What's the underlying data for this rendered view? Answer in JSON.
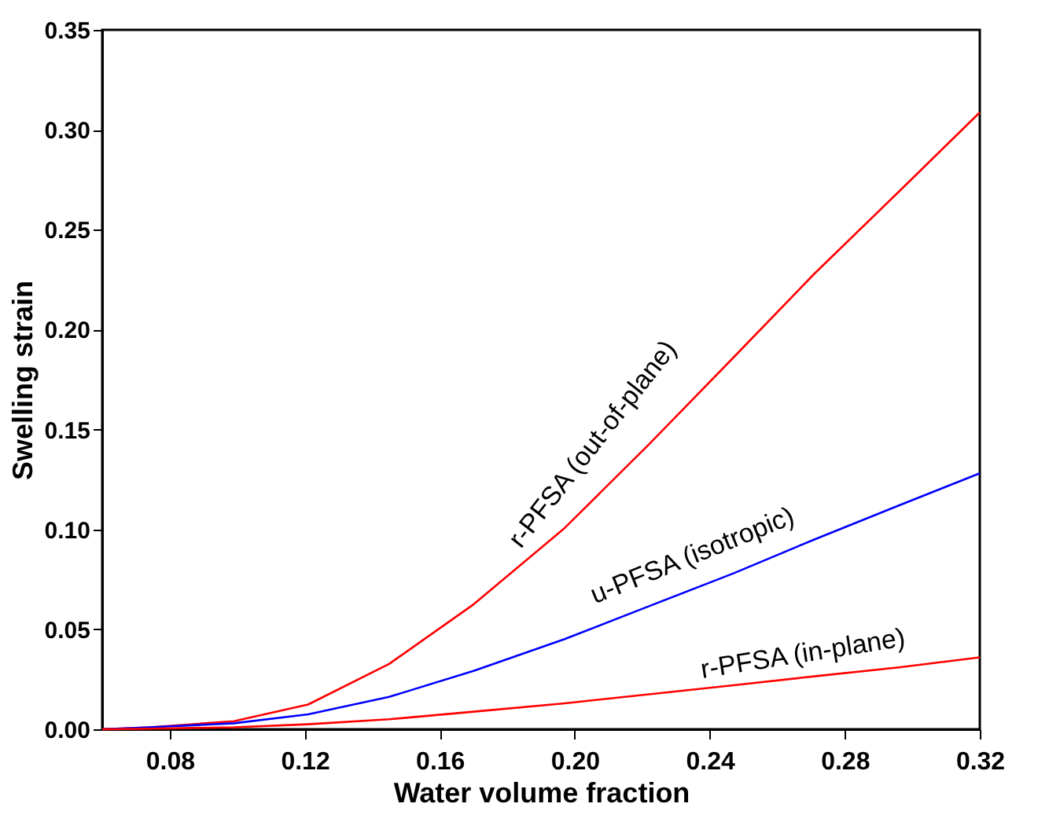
{
  "chart_data": {
    "type": "line",
    "xlabel": "Water volume fraction",
    "ylabel": "Swelling strain",
    "xlim": [
      0.06,
      0.32
    ],
    "xticks": [
      0.08,
      0.12,
      0.16,
      {
        "value": 0.2,
        "label": "0.20"
      },
      0.24,
      0.28,
      0.32
    ],
    "ylim": [
      0,
      0.35
    ],
    "yticks": [
      {
        "value": 0,
        "label": "0.00"
      },
      0.05,
      {
        "value": 0.1,
        "label": "0.10"
      },
      0.15,
      {
        "value": 0.2,
        "label": "0.20"
      },
      0.25,
      {
        "value": 0.3,
        "label": "0.30"
      },
      0.35
    ],
    "grid": false,
    "marker": "none",
    "line_style": "solid",
    "series": [
      {
        "name": "r-PFSA (out-of-plane)",
        "color": "#ff0000",
        "x": [
          0.06,
          0.074,
          0.099,
          0.121,
          0.145,
          0.17,
          0.197,
          0.222,
          0.247,
          0.271,
          0.296,
          0.32
        ],
        "values": [
          0,
          0.001,
          0.004,
          0.0124,
          0.0327,
          0.0625,
          0.1007,
          0.1426,
          0.186,
          0.228,
          0.269,
          0.3087
        ]
      },
      {
        "name": "u-PFSA (isotropic)",
        "color": "#0000ff",
        "x": [
          0.06,
          0.074,
          0.099,
          0.121,
          0.145,
          0.17,
          0.197,
          0.222,
          0.247,
          0.271,
          0.296,
          0.32
        ],
        "values": [
          0,
          0.001,
          0.003,
          0.0075,
          0.0162,
          0.0292,
          0.0451,
          0.0616,
          0.078,
          0.095,
          0.112,
          0.1281
        ]
      },
      {
        "name": "r-PFSA (in-plane)",
        "color": "#ff0000",
        "x": [
          0.06,
          0.074,
          0.099,
          0.121,
          0.145,
          0.17,
          0.197,
          0.222,
          0.247,
          0.271,
          0.296,
          0.32
        ],
        "values": [
          0,
          0.0003,
          0.001,
          0.0025,
          0.005,
          0.0088,
          0.013,
          0.0175,
          0.022,
          0.0265,
          0.031,
          0.036
        ]
      }
    ]
  }
}
